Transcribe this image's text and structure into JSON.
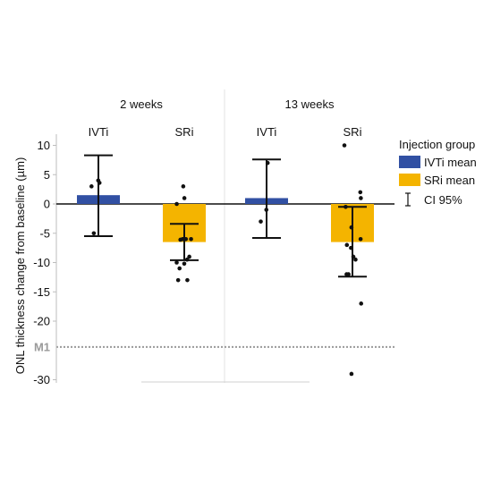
{
  "chart_data": {
    "type": "bar",
    "ylabel": "ONL thickness change from baseline (µm)",
    "ylim": [
      -30,
      10
    ],
    "y_ticks": [
      10,
      5,
      0,
      -5,
      -10,
      -15,
      -20,
      -30
    ],
    "reference_line": {
      "label": "M1",
      "y": -24.4,
      "style": "dotted",
      "color": "#9a9a9a"
    },
    "panels": [
      {
        "title": "2 weeks",
        "groups": [
          {
            "label": "IVTi",
            "mean": 1.5,
            "ci": [
              -5.5,
              8.3
            ],
            "points": [
              4.0,
              3.6,
              3.0,
              -5.0
            ]
          },
          {
            "label": "SRi",
            "mean": -6.5,
            "ci": [
              -9.6,
              -3.4
            ],
            "points": [
              3.0,
              1.0,
              0.0,
              -6.0,
              -6.0,
              -6.0,
              -6.1,
              -9.0,
              -9.5,
              -10.0,
              -10.2,
              -11.0,
              -13.0,
              -13.0
            ]
          }
        ]
      },
      {
        "title": "13 weeks",
        "groups": [
          {
            "label": "IVTi",
            "mean": 1.0,
            "ci": [
              -5.8,
              7.6
            ],
            "points": [
              7.0,
              -1.0,
              -3.0
            ]
          },
          {
            "label": "SRi",
            "mean": -6.5,
            "ci": [
              -12.4,
              -0.5
            ],
            "points": [
              10.0,
              2.0,
              1.0,
              -0.5,
              -4.0,
              -6.0,
              -7.0,
              -7.5,
              -9.0,
              -9.5,
              -12.0,
              -12.0,
              -17.0,
              -29.0
            ]
          }
        ]
      }
    ],
    "legend": {
      "title": "Injection group",
      "position": "right",
      "entries": [
        {
          "label": "IVTi mean",
          "color": "#3150a3",
          "kind": "swatch"
        },
        {
          "label": "SRi mean",
          "color": "#f4b400",
          "kind": "swatch"
        },
        {
          "label": "CI 95%",
          "color": "#111111",
          "kind": "errorbar"
        }
      ]
    },
    "colors": {
      "IVTi": "#3150a3",
      "SRi": "#f4b400",
      "errorbar": "#111111",
      "points": "#111111"
    }
  }
}
